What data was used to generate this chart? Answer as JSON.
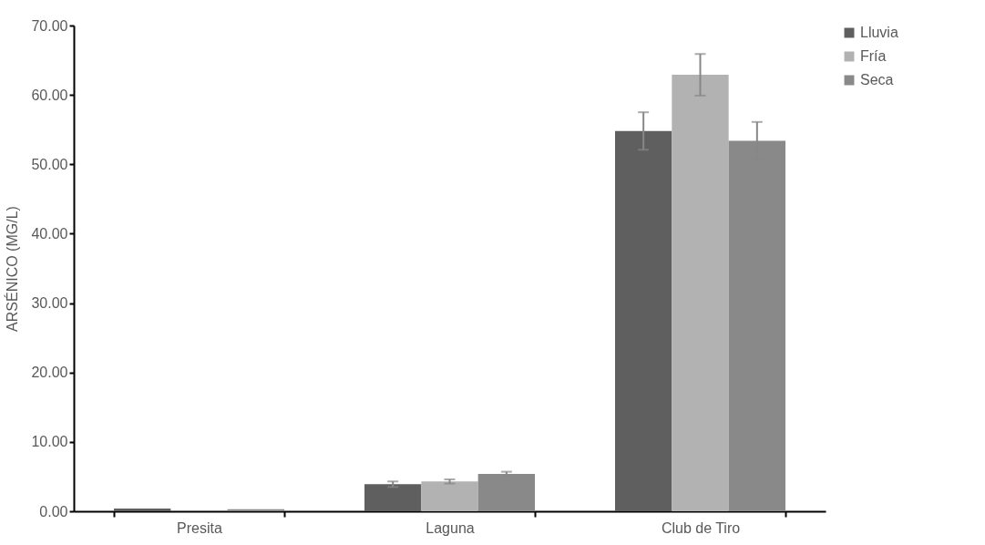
{
  "chart_data": {
    "type": "bar",
    "ylabel": "ARSÉNICO (MG/L)",
    "categories": [
      "Presita",
      "Laguna",
      "Club de Tiro"
    ],
    "series": [
      {
        "name": "Lluvia",
        "color": "#5f5f5f",
        "values": [
          0.4,
          3.9,
          54.8
        ],
        "errors": [
          null,
          0.4,
          2.7
        ]
      },
      {
        "name": "Fría",
        "color": "#b2b2b2",
        "values": [
          0,
          4.3,
          62.9
        ],
        "errors": [
          null,
          0.3,
          3.0
        ]
      },
      {
        "name": "Seca",
        "color": "#898989",
        "values": [
          0.3,
          5.4,
          53.4
        ],
        "errors": [
          null,
          0.3,
          2.7
        ]
      }
    ],
    "ylim": [
      0,
      70
    ],
    "yticks": [
      {
        "value": 0,
        "label": "0.00"
      },
      {
        "value": 10,
        "label": "10.00"
      },
      {
        "value": 20,
        "label": "20.00"
      },
      {
        "value": 30,
        "label": "30.00"
      },
      {
        "value": 40,
        "label": "40.00"
      },
      {
        "value": 50,
        "label": "50.00"
      },
      {
        "value": 60,
        "label": "60.00"
      },
      {
        "value": 70,
        "label": "70.00"
      }
    ],
    "legend": "right",
    "grid": false
  }
}
